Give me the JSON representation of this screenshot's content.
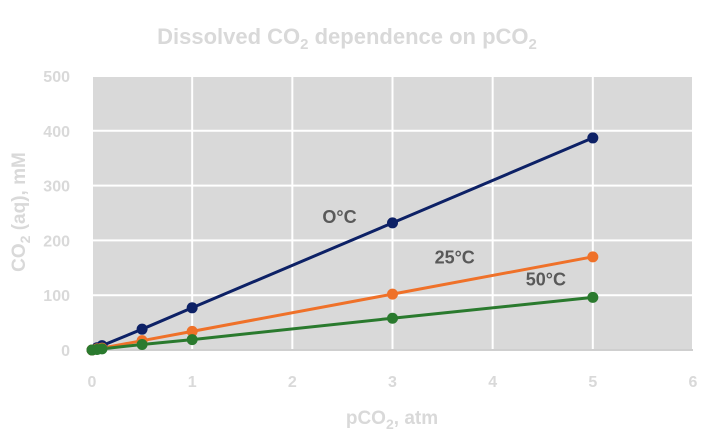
{
  "chart_data": {
    "type": "scatter",
    "title": {
      "pre": "Dissolved CO",
      "sub": "2",
      "post": "  dependence on pCO",
      "sub2": "2"
    },
    "xlabel": {
      "pre": "pCO",
      "sub": "2",
      "post": ", atm"
    },
    "ylabel": {
      "pre": "CO",
      "sub": "2",
      "post": " (aq), mM"
    },
    "xlim": [
      0,
      6
    ],
    "ylim": [
      0,
      500
    ],
    "x_ticks": [
      0,
      1,
      2,
      3,
      4,
      5,
      6
    ],
    "y_ticks": [
      0,
      100,
      200,
      300,
      400,
      500
    ],
    "grid": true,
    "series": [
      {
        "name": "O°C",
        "color": "#0d2166",
        "x": [
          0,
          0.05,
          0.1,
          0.5,
          1,
          3,
          5
        ],
        "y": [
          0,
          4,
          8,
          38,
          77,
          232,
          387
        ]
      },
      {
        "name": "25°C",
        "color": "#ef7129",
        "x": [
          0,
          0.05,
          0.1,
          0.5,
          1,
          3,
          5
        ],
        "y": [
          0,
          2,
          3.4,
          17,
          34,
          102,
          170
        ]
      },
      {
        "name": "50°C",
        "color": "#2a7a2e",
        "x": [
          0,
          0.05,
          0.1,
          0.5,
          1,
          3,
          5
        ],
        "y": [
          0,
          1,
          2,
          10,
          19,
          58,
          96
        ]
      }
    ]
  },
  "colors": {
    "plot_background": "#d9d9d9",
    "gridline": "#ffffff",
    "text": "#d9d9d9",
    "series_label_text": "#595959",
    "axis_line": "#bfbfbf"
  }
}
